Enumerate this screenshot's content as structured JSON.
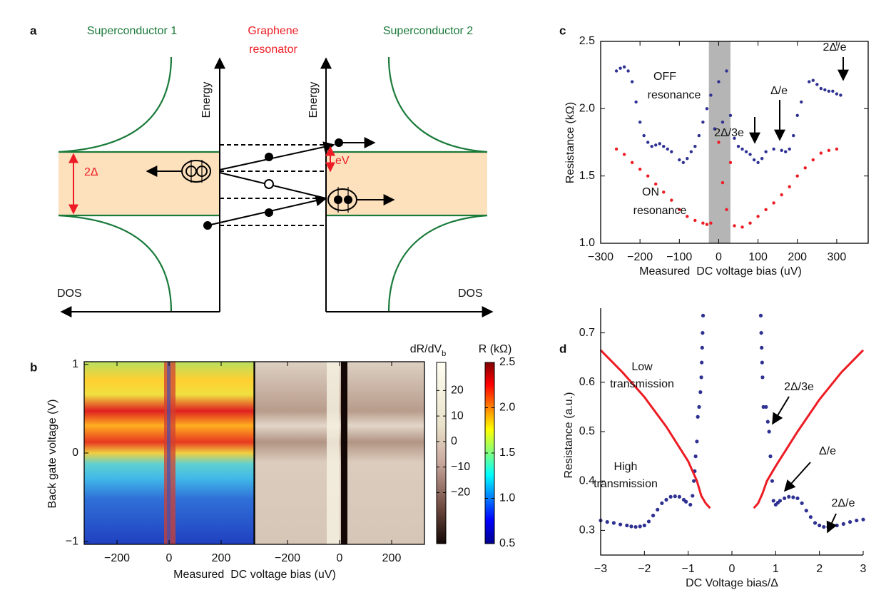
{
  "panel_labels": [
    "a",
    "b",
    "c",
    "d"
  ],
  "diagram": {
    "superconductor_1": "Superconductor 1",
    "resonator": [
      "Graphene",
      "resonator"
    ],
    "superconductor_2": "Superconductor 2",
    "energy_label": "Energy",
    "dos_label": "DOS",
    "gap_label": "2Δ",
    "bias_label": "eV"
  },
  "chart_data": [
    {
      "type": "heatmap-pair",
      "xlabel": "Measured  DC voltage bias (uV)",
      "ylabel": "Back gate voltage (V)",
      "xlim": [
        -326,
        326
      ],
      "xticks": [
        {
          "value": -200,
          "label": "−200"
        },
        0,
        200
      ],
      "ylim": [
        -1.03,
        1.03
      ],
      "yticks": [
        {
          "value": -1,
          "label": "−1"
        },
        0,
        1
      ],
      "colorbars": [
        {
          "label": "dR/dV",
          "label_sub": "b",
          "lim": [
            -40,
            31
          ],
          "ticks": [
            20,
            10,
            0,
            {
              "value": -10,
              "label": "−10"
            },
            {
              "value": -20,
              "label": "−20"
            }
          ]
        },
        {
          "label": "R (kΩ)",
          "lim": [
            0.5,
            2.5
          ],
          "ticks": [
            2.5,
            {
              "value": 2,
              "label": "2.0"
            },
            1.5,
            {
              "value": 1,
              "label": "1.0"
            },
            0.5
          ]
        }
      ]
    },
    {
      "type": "scatter",
      "xlabel": "Measured  DC voltage bias (uV)",
      "ylabel": "Resistance (kΩ)",
      "xlim": [
        -300,
        380
      ],
      "xticks": [
        {
          "value": -300,
          "label": "−300"
        },
        {
          "value": -200,
          "label": "−200"
        },
        {
          "value": -100,
          "label": "−100"
        },
        0,
        100,
        200,
        300
      ],
      "ylim": [
        1.0,
        2.5
      ],
      "yticks": [
        {
          "value": 1,
          "label": "1.0"
        },
        1.5,
        {
          "value": 2,
          "label": "2.0"
        },
        2.5
      ],
      "shaded_x": [
        -25,
        30
      ],
      "series": [
        {
          "name": [
            "OFF",
            "resonance"
          ],
          "color": "#2e3192",
          "x": [
            -260,
            -250,
            -240,
            -230,
            -220,
            -210,
            -200,
            -190,
            -180,
            -170,
            -160,
            -150,
            -140,
            -130,
            -120,
            -100,
            -90,
            -80,
            -70,
            -60,
            -50,
            -40,
            -30,
            -20,
            -10,
            0,
            10,
            20,
            30,
            40,
            50,
            60,
            70,
            80,
            90,
            100,
            110,
            120,
            140,
            160,
            170,
            180,
            190,
            200,
            210,
            230,
            240,
            250,
            260,
            270,
            280,
            290,
            300,
            310
          ],
          "values": [
            2.28,
            2.3,
            2.31,
            2.28,
            2.2,
            2.05,
            1.9,
            1.8,
            1.75,
            1.72,
            1.73,
            1.74,
            1.72,
            1.7,
            1.68,
            1.62,
            1.6,
            1.63,
            1.68,
            1.72,
            1.8,
            1.9,
            2.0,
            2.1,
            1.85,
            2.2,
            1.9,
            2.28,
            1.95,
            1.78,
            1.72,
            1.7,
            1.68,
            1.66,
            1.62,
            1.6,
            1.63,
            1.68,
            1.7,
            1.69,
            1.68,
            1.7,
            1.8,
            1.95,
            2.05,
            2.2,
            2.21,
            2.18,
            2.15,
            2.14,
            2.13,
            2.13,
            2.11,
            2.1
          ]
        },
        {
          "name": [
            "ON",
            "resonance"
          ],
          "color": "#ed1c24",
          "x": [
            -260,
            -240,
            -220,
            -200,
            -180,
            -160,
            -140,
            -120,
            -100,
            -80,
            -60,
            -40,
            -30,
            -20,
            0,
            10,
            20,
            30,
            40,
            60,
            80,
            100,
            120,
            140,
            160,
            180,
            200,
            220,
            240,
            260,
            280,
            300
          ],
          "values": [
            1.7,
            1.66,
            1.6,
            1.55,
            1.5,
            1.44,
            1.38,
            1.32,
            1.25,
            1.2,
            1.17,
            1.15,
            1.14,
            1.15,
            1.75,
            1.45,
            1.25,
            1.6,
            1.13,
            1.12,
            1.15,
            1.2,
            1.25,
            1.3,
            1.36,
            1.42,
            1.5,
            1.56,
            1.62,
            1.67,
            1.69,
            1.7
          ]
        }
      ],
      "annotations": [
        "2Δ/3e",
        "Δ/e",
        "2Δ/e"
      ]
    },
    {
      "type": "line",
      "xlabel": "DC Voltage bias/Δ",
      "ylabel": "Resistance (a.u.)",
      "xlim": [
        -3,
        3
      ],
      "xticks": [
        {
          "value": -3,
          "label": "−3"
        },
        {
          "value": -2,
          "label": "−2"
        },
        {
          "value": -1,
          "label": "−1"
        },
        0,
        1,
        2,
        3
      ],
      "ylim": [
        0.25,
        0.75
      ],
      "yticks": [
        0.3,
        0.4,
        0.5,
        0.6,
        0.7
      ],
      "series": [
        {
          "name": [
            "Low",
            "transmission"
          ],
          "color": "#2e3192",
          "style": "dots",
          "x": [
            -3,
            -2.85,
            -2.7,
            -2.55,
            -2.4,
            -2.3,
            -2.2,
            -2.1,
            -2.0,
            -1.9,
            -1.8,
            -1.7,
            -1.6,
            -1.5,
            -1.4,
            -1.3,
            -1.2,
            -1.1,
            -1.05,
            -0.95,
            -0.9,
            -0.87,
            -0.85,
            -0.83,
            -0.8,
            -0.78,
            -0.75,
            -0.72,
            -0.7,
            -0.69,
            -0.68,
            -0.67,
            -0.66,
            0.66,
            0.67,
            0.68,
            0.69,
            0.7,
            0.72,
            0.78,
            0.82,
            0.85,
            0.88,
            0.92,
            0.95,
            1.0,
            1.05,
            1.1,
            1.2,
            1.3,
            1.4,
            1.5,
            1.6,
            1.7,
            1.8,
            1.9,
            2.0,
            2.1,
            2.2,
            2.3,
            2.4,
            2.55,
            2.7,
            2.85,
            3
          ],
          "values": [
            0.32,
            0.317,
            0.315,
            0.312,
            0.31,
            0.308,
            0.307,
            0.308,
            0.31,
            0.318,
            0.33,
            0.342,
            0.355,
            0.362,
            0.368,
            0.369,
            0.368,
            0.362,
            0.358,
            0.352,
            0.37,
            0.4,
            0.42,
            0.45,
            0.48,
            0.53,
            0.55,
            0.58,
            0.61,
            0.64,
            0.67,
            0.7,
            0.735,
            0.735,
            0.7,
            0.67,
            0.64,
            0.61,
            0.55,
            0.55,
            0.52,
            0.5,
            0.45,
            0.4,
            0.36,
            0.352,
            0.356,
            0.36,
            0.365,
            0.368,
            0.367,
            0.365,
            0.355,
            0.34,
            0.327,
            0.315,
            0.31,
            0.307,
            0.307,
            0.308,
            0.31,
            0.313,
            0.317,
            0.32,
            0.322
          ]
        },
        {
          "name": [
            "High",
            "transmission"
          ],
          "color": "#ed1c24",
          "style": "line",
          "x": [
            -3,
            -2.5,
            -2,
            -1.5,
            -1.0,
            -0.8,
            -0.7,
            -0.6,
            -0.5,
            null,
            0.5,
            0.6,
            0.7,
            0.8,
            1.0,
            1.5,
            2,
            2.5,
            3
          ],
          "values": [
            0.665,
            0.62,
            0.57,
            0.51,
            0.44,
            0.4,
            0.37,
            0.355,
            0.345,
            null,
            0.345,
            0.355,
            0.375,
            0.4,
            0.43,
            0.5,
            0.565,
            0.62,
            0.665
          ]
        }
      ],
      "annotations": [
        "2Δ/3e",
        "Δ/e",
        "2Δ/e"
      ]
    }
  ]
}
